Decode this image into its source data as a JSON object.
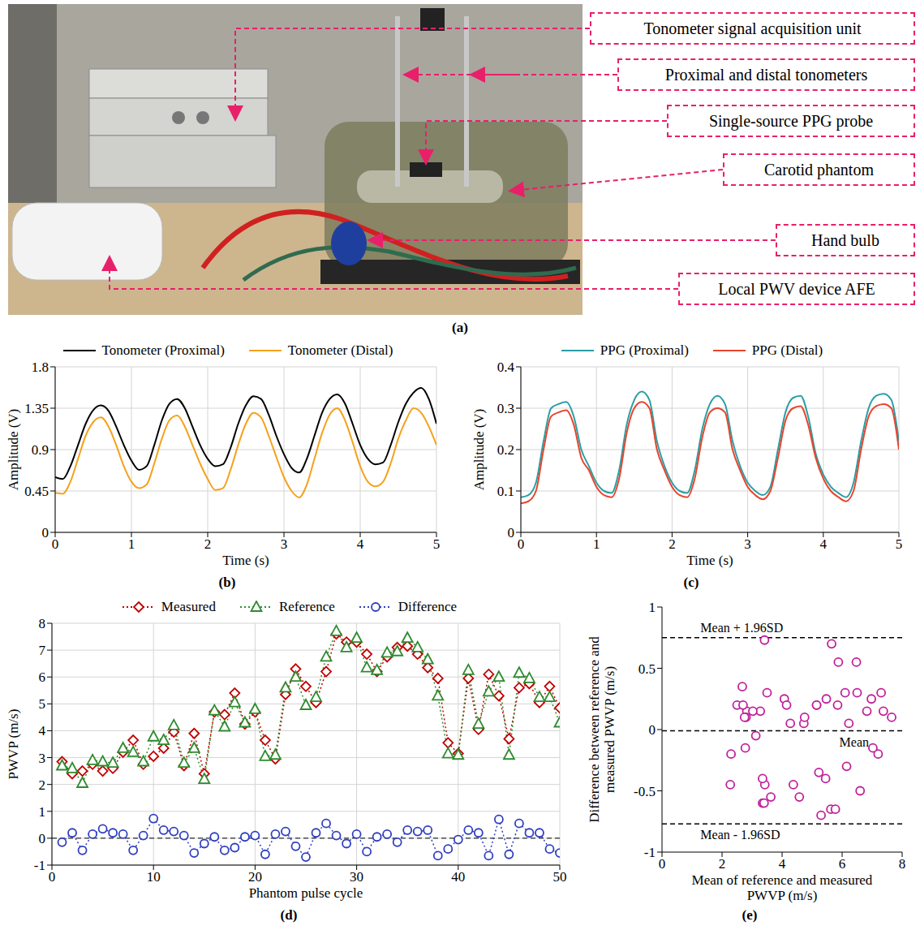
{
  "panel_a": {
    "caption": "(a)",
    "labels": [
      "Tonometer signal acquisition unit",
      "Proximal and distal tonometers",
      "Single-source PPG probe",
      "Carotid phantom",
      "Hand bulb",
      "Local PWV device AFE"
    ]
  },
  "chart_data": [
    {
      "caption": "(b)",
      "type": "line",
      "x_label": "Time (s)",
      "y_label": "Amplitude (V)",
      "xlim": [
        0,
        5
      ],
      "xticks": [
        0,
        1,
        2,
        3,
        4,
        5
      ],
      "ylim": [
        0,
        1.8
      ],
      "yticks": [
        0,
        0.45,
        0.9,
        1.35,
        1.8
      ],
      "grid": true,
      "legend": "top",
      "x": [
        0,
        0.1,
        0.2,
        0.3,
        0.4,
        0.5,
        0.6,
        0.7,
        0.8,
        0.9,
        1,
        1.1,
        1.2,
        1.3,
        1.4,
        1.5,
        1.6,
        1.7,
        1.8,
        1.9,
        2,
        2.1,
        2.2,
        2.3,
        2.4,
        2.5,
        2.6,
        2.7,
        2.8,
        2.9,
        3,
        3.1,
        3.2,
        3.3,
        3.4,
        3.5,
        3.6,
        3.7,
        3.8,
        3.9,
        4,
        4.1,
        4.2,
        4.3,
        4.4,
        4.5,
        4.6,
        4.7,
        4.8,
        4.9,
        5
      ],
      "series": [
        {
          "name": "Tonometer (Proximal)",
          "color": "#000000",
          "line_style": "solid",
          "values": [
            0.6,
            0.58,
            0.72,
            0.95,
            1.18,
            1.33,
            1.38,
            1.32,
            1.15,
            0.95,
            0.78,
            0.68,
            0.72,
            0.95,
            1.22,
            1.4,
            1.45,
            1.35,
            1.15,
            0.95,
            0.8,
            0.72,
            0.74,
            0.92,
            1.18,
            1.38,
            1.48,
            1.45,
            1.28,
            1.05,
            0.85,
            0.7,
            0.65,
            0.8,
            1.05,
            1.3,
            1.45,
            1.5,
            1.4,
            1.18,
            0.95,
            0.8,
            0.74,
            0.76,
            0.95,
            1.2,
            1.4,
            1.52,
            1.57,
            1.45,
            1.18
          ]
        },
        {
          "name": "Tonometer (Distal)",
          "color": "#f5a11c",
          "line_style": "solid",
          "values": [
            0.43,
            0.42,
            0.55,
            0.8,
            1.05,
            1.2,
            1.25,
            1.15,
            0.95,
            0.72,
            0.55,
            0.48,
            0.52,
            0.75,
            1.02,
            1.22,
            1.27,
            1.15,
            0.95,
            0.75,
            0.58,
            0.46,
            0.48,
            0.68,
            0.95,
            1.18,
            1.3,
            1.25,
            1.05,
            0.82,
            0.6,
            0.45,
            0.38,
            0.52,
            0.8,
            1.08,
            1.28,
            1.35,
            1.22,
            0.98,
            0.72,
            0.55,
            0.5,
            0.55,
            0.75,
            1.02,
            1.22,
            1.35,
            1.3,
            1.15,
            0.95
          ]
        }
      ]
    },
    {
      "caption": "(c)",
      "type": "line",
      "x_label": "Time (s)",
      "y_label": "Amplitude (V)",
      "xlim": [
        0,
        5
      ],
      "xticks": [
        0,
        1,
        2,
        3,
        4,
        5
      ],
      "ylim": [
        0,
        0.4
      ],
      "yticks": [
        0,
        0.1,
        0.2,
        0.3,
        0.4
      ],
      "grid": true,
      "legend": "top",
      "x": [
        0,
        0.1,
        0.2,
        0.3,
        0.4,
        0.5,
        0.6,
        0.7,
        0.8,
        0.9,
        1,
        1.1,
        1.2,
        1.3,
        1.4,
        1.5,
        1.6,
        1.7,
        1.8,
        1.9,
        2,
        2.1,
        2.2,
        2.3,
        2.4,
        2.5,
        2.6,
        2.7,
        2.8,
        2.9,
        3,
        3.1,
        3.2,
        3.3,
        3.4,
        3.5,
        3.6,
        3.7,
        3.8,
        3.9,
        4,
        4.1,
        4.2,
        4.3,
        4.4,
        4.5,
        4.6,
        4.7,
        4.8,
        4.9,
        5
      ],
      "series": [
        {
          "name": "PPG (Proximal)",
          "color": "#2b9ea4",
          "line_style": "solid",
          "values": [
            0.085,
            0.09,
            0.12,
            0.22,
            0.3,
            0.31,
            0.315,
            0.28,
            0.2,
            0.16,
            0.12,
            0.1,
            0.095,
            0.15,
            0.26,
            0.32,
            0.34,
            0.32,
            0.22,
            0.16,
            0.12,
            0.1,
            0.095,
            0.15,
            0.25,
            0.31,
            0.33,
            0.31,
            0.22,
            0.16,
            0.12,
            0.1,
            0.09,
            0.11,
            0.2,
            0.29,
            0.325,
            0.33,
            0.28,
            0.19,
            0.14,
            0.11,
            0.095,
            0.085,
            0.12,
            0.22,
            0.3,
            0.33,
            0.335,
            0.32,
            0.22
          ]
        },
        {
          "name": "PPG (Distal)",
          "color": "#e8452c",
          "line_style": "solid",
          "values": [
            0.07,
            0.075,
            0.1,
            0.2,
            0.28,
            0.29,
            0.295,
            0.26,
            0.18,
            0.15,
            0.11,
            0.09,
            0.085,
            0.13,
            0.24,
            0.3,
            0.315,
            0.3,
            0.2,
            0.15,
            0.11,
            0.09,
            0.085,
            0.13,
            0.23,
            0.29,
            0.3,
            0.29,
            0.2,
            0.15,
            0.11,
            0.09,
            0.08,
            0.1,
            0.18,
            0.27,
            0.3,
            0.305,
            0.26,
            0.18,
            0.13,
            0.1,
            0.085,
            0.075,
            0.1,
            0.2,
            0.28,
            0.305,
            0.31,
            0.3,
            0.2
          ]
        }
      ]
    },
    {
      "caption": "(d)",
      "type": "line",
      "x_label": "Phantom pulse cycle",
      "y_label": "PWVP (m/s)",
      "xlim": [
        0,
        50
      ],
      "xticks": [
        0,
        10,
        20,
        30,
        40,
        50
      ],
      "ylim": [
        -1,
        8
      ],
      "yticks": [
        -1,
        0,
        1,
        2,
        3,
        4,
        5,
        6,
        7,
        8
      ],
      "grid": true,
      "legend": "top",
      "hlines": [
        0
      ],
      "x": [
        1,
        2,
        3,
        4,
        5,
        6,
        7,
        8,
        9,
        10,
        11,
        12,
        13,
        14,
        15,
        16,
        17,
        18,
        19,
        20,
        21,
        22,
        23,
        24,
        25,
        26,
        27,
        28,
        29,
        30,
        31,
        32,
        33,
        34,
        35,
        36,
        37,
        38,
        39,
        40,
        41,
        42,
        43,
        44,
        45,
        46,
        47,
        48,
        49,
        50
      ],
      "series": [
        {
          "name": "Measured",
          "color": "#c00000",
          "marker": "diamond",
          "line_style": "dotted",
          "values": [
            2.85,
            2.4,
            2.5,
            2.75,
            2.5,
            2.6,
            3.2,
            3.65,
            2.75,
            3.05,
            3.35,
            3.95,
            2.7,
            3.9,
            2.4,
            4.7,
            4.6,
            5.4,
            4.25,
            4.7,
            3.65,
            2.95,
            5.35,
            6.3,
            5.65,
            5.05,
            6.2,
            7.6,
            7.3,
            7.3,
            6.85,
            6.2,
            6.75,
            7.1,
            7.15,
            6.85,
            6.35,
            5.95,
            3.55,
            3.15,
            5.95,
            4.05,
            6.1,
            5.3,
            3.7,
            5.6,
            5.75,
            5.05,
            5.65,
            4.85
          ]
        },
        {
          "name": "Reference",
          "color": "#2e8b2e",
          "marker": "triangle",
          "line_style": "dotted",
          "values": [
            2.7,
            2.6,
            2.05,
            2.9,
            2.85,
            2.8,
            3.35,
            3.2,
            2.85,
            3.78,
            3.65,
            4.2,
            2.8,
            3.35,
            2.2,
            4.75,
            4.15,
            5.05,
            4.3,
            4.8,
            3.05,
            3.1,
            5.6,
            6.0,
            4.95,
            5.25,
            6.75,
            7.7,
            7.1,
            7.45,
            6.35,
            6.25,
            6.9,
            6.95,
            7.45,
            7.1,
            6.65,
            5.3,
            3.15,
            3.1,
            6.25,
            4.25,
            5.45,
            6.0,
            3.1,
            6.15,
            5.95,
            5.25,
            5.25,
            4.3
          ]
        },
        {
          "name": "Difference",
          "color": "#2f3fbf",
          "marker": "circle",
          "line_style": "dotted",
          "values": [
            -0.15,
            0.2,
            -0.45,
            0.15,
            0.35,
            0.2,
            0.15,
            -0.45,
            0.1,
            0.73,
            0.3,
            0.25,
            0.1,
            -0.55,
            -0.2,
            0.05,
            -0.45,
            -0.35,
            0.05,
            0.1,
            -0.6,
            0.15,
            0.25,
            -0.3,
            -0.7,
            0.2,
            0.55,
            0.1,
            -0.2,
            0.15,
            -0.5,
            0.05,
            0.15,
            -0.15,
            0.3,
            0.25,
            0.3,
            -0.65,
            -0.4,
            -0.05,
            0.3,
            0.2,
            -0.65,
            0.7,
            -0.6,
            0.55,
            0.2,
            0.2,
            -0.4,
            -0.55
          ]
        }
      ]
    },
    {
      "caption": "(e)",
      "type": "scatter",
      "x_label": "Mean of reference and measured PWVP (m/s)",
      "y_label": "Difference between reference and measured PWVP (m/s)",
      "xlim": [
        0,
        8
      ],
      "xticks": [
        0,
        2,
        4,
        6,
        8
      ],
      "ylim": [
        -1,
        1
      ],
      "yticks": [
        -1,
        -0.5,
        0,
        0.5,
        1
      ],
      "grid": false,
      "hlines": [
        {
          "value": 0.75,
          "label": "Mean + 1.96SD"
        },
        {
          "value": -0.01,
          "label": "Mean"
        },
        {
          "value": -0.77,
          "label": "Mean - 1.96SD"
        }
      ],
      "series": [
        {
          "color": "#c0209a",
          "marker": "circle",
          "x": [
            2.775,
            2.5,
            2.275,
            2.825,
            2.675,
            2.7,
            3.275,
            3.425,
            2.8,
            3.415,
            3.5,
            4.075,
            2.75,
            3.625,
            2.3,
            4.725,
            4.375,
            5.225,
            4.275,
            4.75,
            3.35,
            3.025,
            5.475,
            6.15,
            5.3,
            5.15,
            6.475,
            7.65,
            7.2,
            7.375,
            6.6,
            6.225,
            6.825,
            7.025,
            7.3,
            6.975,
            6.5,
            5.625,
            3.35,
            3.125,
            6.1,
            4.15,
            5.775,
            5.65,
            3.4,
            5.875,
            5.85,
            5.15,
            5.45,
            4.575
          ],
          "values": [
            -0.15,
            0.2,
            -0.45,
            0.15,
            0.35,
            0.2,
            0.15,
            -0.45,
            0.1,
            0.73,
            0.3,
            0.25,
            0.1,
            -0.55,
            -0.2,
            0.05,
            -0.45,
            -0.35,
            0.05,
            0.1,
            -0.6,
            0.15,
            0.25,
            -0.3,
            -0.7,
            0.2,
            0.55,
            0.1,
            -0.2,
            0.15,
            -0.5,
            0.05,
            0.15,
            -0.15,
            0.3,
            0.25,
            0.3,
            -0.65,
            -0.4,
            -0.05,
            0.3,
            0.2,
            -0.65,
            0.7,
            -0.6,
            0.55,
            0.2,
            0.2,
            -0.4,
            -0.55
          ]
        }
      ]
    }
  ]
}
